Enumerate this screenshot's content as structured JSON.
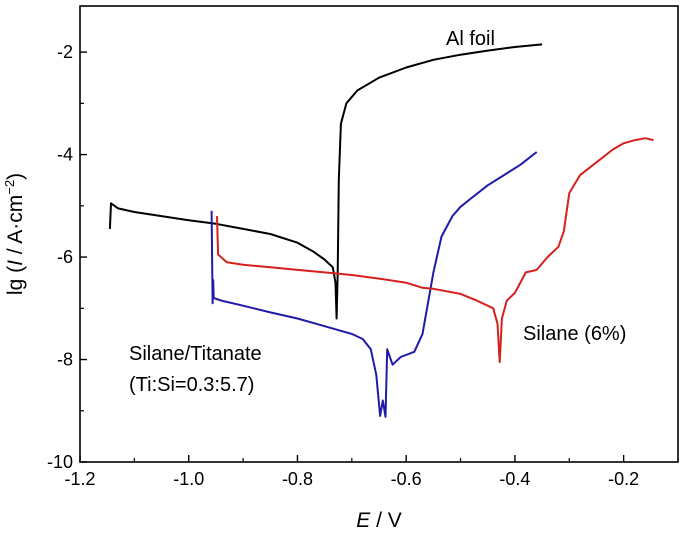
{
  "chart_data": {
    "type": "line",
    "xlabel": "E / V",
    "ylabel": "lg (I / A·cm⁻²)",
    "xlim": [
      -1.2,
      -0.1
    ],
    "ylim": [
      -10,
      -1.1
    ],
    "xticks": [
      {
        "value": -1.2,
        "label": "-1.2"
      },
      {
        "value": -1.0,
        "label": "-1.0"
      },
      {
        "value": -0.8,
        "label": "-0.8"
      },
      {
        "value": -0.6,
        "label": "-0.6"
      },
      {
        "value": -0.4,
        "label": "-0.4"
      },
      {
        "value": -0.2,
        "label": "-0.2"
      }
    ],
    "yticks": [
      {
        "value": -10,
        "label": "-10"
      },
      {
        "value": -8,
        "label": "-8"
      },
      {
        "value": -6,
        "label": "-6"
      },
      {
        "value": -4,
        "label": "-4"
      },
      {
        "value": -2,
        "label": "-2"
      }
    ],
    "grid": false,
    "series": [
      {
        "key": "al-foil",
        "color": "#000000",
        "points": [
          [
            -1.145,
            -5.45
          ],
          [
            -1.143,
            -4.95
          ],
          [
            -1.13,
            -5.05
          ],
          [
            -1.1,
            -5.12
          ],
          [
            -1.05,
            -5.2
          ],
          [
            -1.0,
            -5.28
          ],
          [
            -0.95,
            -5.35
          ],
          [
            -0.9,
            -5.45
          ],
          [
            -0.85,
            -5.55
          ],
          [
            -0.8,
            -5.72
          ],
          [
            -0.77,
            -5.9
          ],
          [
            -0.75,
            -6.05
          ],
          [
            -0.735,
            -6.2
          ],
          [
            -0.73,
            -6.5
          ],
          [
            -0.728,
            -7.2
          ],
          [
            -0.726,
            -6.3
          ],
          [
            -0.724,
            -4.5
          ],
          [
            -0.72,
            -3.4
          ],
          [
            -0.71,
            -3.0
          ],
          [
            -0.69,
            -2.75
          ],
          [
            -0.65,
            -2.5
          ],
          [
            -0.6,
            -2.3
          ],
          [
            -0.55,
            -2.15
          ],
          [
            -0.5,
            -2.05
          ],
          [
            -0.45,
            -1.97
          ],
          [
            -0.4,
            -1.9
          ],
          [
            -0.35,
            -1.85
          ]
        ]
      },
      {
        "key": "silane-titanate",
        "color": "#1f1aa8",
        "points": [
          [
            -0.958,
            -5.1
          ],
          [
            -0.956,
            -6.9
          ],
          [
            -0.955,
            -6.45
          ],
          [
            -0.954,
            -6.8
          ],
          [
            -0.94,
            -6.85
          ],
          [
            -0.9,
            -6.95
          ],
          [
            -0.85,
            -7.08
          ],
          [
            -0.8,
            -7.2
          ],
          [
            -0.75,
            -7.35
          ],
          [
            -0.7,
            -7.5
          ],
          [
            -0.68,
            -7.6
          ],
          [
            -0.665,
            -7.8
          ],
          [
            -0.655,
            -8.3
          ],
          [
            -0.648,
            -9.1
          ],
          [
            -0.643,
            -8.8
          ],
          [
            -0.638,
            -9.12
          ],
          [
            -0.635,
            -7.8
          ],
          [
            -0.625,
            -8.1
          ],
          [
            -0.61,
            -7.95
          ],
          [
            -0.585,
            -7.85
          ],
          [
            -0.57,
            -7.5
          ],
          [
            -0.55,
            -6.3
          ],
          [
            -0.535,
            -5.6
          ],
          [
            -0.515,
            -5.2
          ],
          [
            -0.5,
            -5.02
          ],
          [
            -0.48,
            -4.85
          ],
          [
            -0.45,
            -4.6
          ],
          [
            -0.42,
            -4.4
          ],
          [
            -0.39,
            -4.2
          ],
          [
            -0.36,
            -3.95
          ]
        ]
      },
      {
        "key": "silane-6",
        "color": "#d6201e",
        "points": [
          [
            -0.948,
            -5.2
          ],
          [
            -0.946,
            -5.95
          ],
          [
            -0.93,
            -6.1
          ],
          [
            -0.9,
            -6.15
          ],
          [
            -0.85,
            -6.2
          ],
          [
            -0.8,
            -6.25
          ],
          [
            -0.75,
            -6.3
          ],
          [
            -0.7,
            -6.35
          ],
          [
            -0.65,
            -6.42
          ],
          [
            -0.6,
            -6.5
          ],
          [
            -0.57,
            -6.6
          ],
          [
            -0.55,
            -6.62
          ],
          [
            -0.5,
            -6.72
          ],
          [
            -0.47,
            -6.85
          ],
          [
            -0.44,
            -7.0
          ],
          [
            -0.432,
            -7.3
          ],
          [
            -0.428,
            -8.05
          ],
          [
            -0.424,
            -7.2
          ],
          [
            -0.415,
            -6.85
          ],
          [
            -0.4,
            -6.7
          ],
          [
            -0.38,
            -6.3
          ],
          [
            -0.36,
            -6.25
          ],
          [
            -0.34,
            -6.0
          ],
          [
            -0.32,
            -5.8
          ],
          [
            -0.31,
            -5.5
          ],
          [
            -0.3,
            -4.75
          ],
          [
            -0.28,
            -4.4
          ],
          [
            -0.25,
            -4.15
          ],
          [
            -0.22,
            -3.9
          ],
          [
            -0.2,
            -3.78
          ],
          [
            -0.18,
            -3.72
          ],
          [
            -0.16,
            -3.68
          ],
          [
            -0.145,
            -3.72
          ]
        ]
      }
    ],
    "annotations": {
      "al_foil": "Al foil",
      "silane_6": "Silane (6%)",
      "silane_titanate_line1": "Silane/Titanate",
      "silane_titanate_line2": "(Ti:Si=0.3:5.7)"
    },
    "ylabel_parts": {
      "prefix": "lg (",
      "italic": "I",
      "mid": " / A·cm",
      "sup": "−2",
      "suffix": ")"
    },
    "xlabel_parts": {
      "italic": "E",
      "suffix": " / V"
    }
  }
}
